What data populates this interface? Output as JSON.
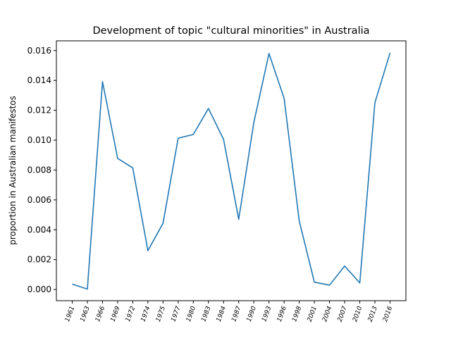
{
  "chart_data": {
    "type": "line",
    "title": "Development of topic \"cultural minorities\" in Australia",
    "xlabel": "",
    "ylabel": "proportion in Australian manifestos",
    "categories": [
      "1961",
      "1963",
      "1966",
      "1969",
      "1972",
      "1974",
      "1975",
      "1977",
      "1980",
      "1983",
      "1984",
      "1987",
      "1990",
      "1993",
      "1996",
      "1998",
      "2001",
      "2004",
      "2007",
      "2010",
      "2013",
      "2016"
    ],
    "series": [
      {
        "values": [
          0.00036,
          3e-05,
          0.01392,
          0.00878,
          0.00814,
          0.0026,
          0.00444,
          0.01013,
          0.01038,
          0.01212,
          0.01005,
          0.0047,
          0.01118,
          0.0158,
          0.0128,
          0.00459,
          0.00049,
          0.00029,
          0.00157,
          0.00044,
          0.01251,
          0.01584
        ],
        "color": "#1f77b4"
      }
    ],
    "yticks": [
      "0.000",
      "0.002",
      "0.004",
      "0.006",
      "0.008",
      "0.010",
      "0.012",
      "0.014",
      "0.016"
    ],
    "ylim": [
      -0.00075,
      0.01665
    ],
    "grid": false,
    "legend": "none"
  }
}
